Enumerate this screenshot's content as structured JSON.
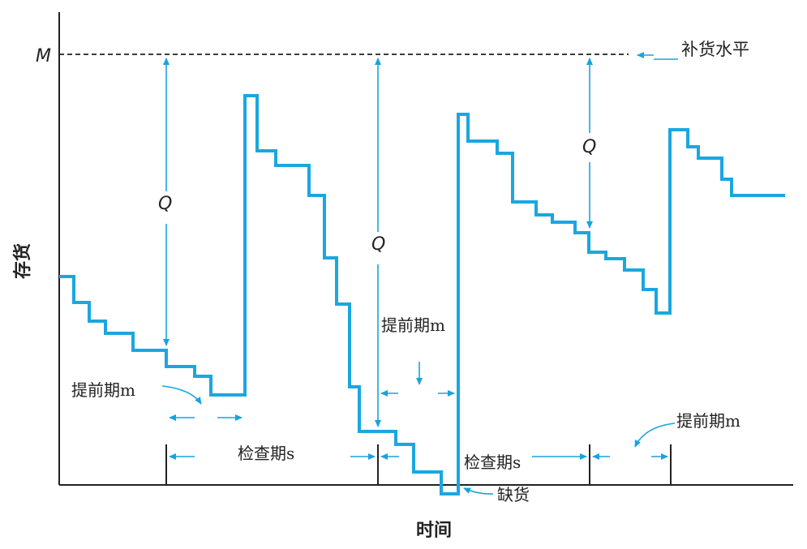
{
  "diagram": {
    "y_axis_label": "存货",
    "x_axis_label": "时间",
    "max_level_label": "M",
    "replenish_level_label": "补货水平",
    "order_quantity_label": "Q",
    "lead_time_label": "提前期m",
    "review_period_label": "检查期s",
    "stockout_label": "缺货",
    "colors": {
      "inventory_line": "#1aa7e0",
      "arrows": "#18a3df",
      "axis": "#222222"
    }
  }
}
